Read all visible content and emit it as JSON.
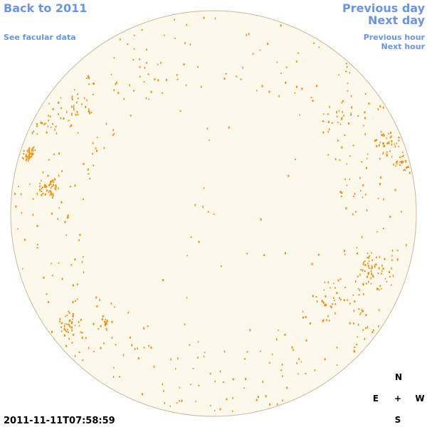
{
  "links": {
    "back": "Back to 2011",
    "facular": "See facular data",
    "prev_day": "Previous day",
    "next_day": "Next day",
    "prev_hour": "Previous hour",
    "next_hour": "Next hour"
  },
  "timestamp": "2011-11-11T07:58:59",
  "compass": {
    "n": "N",
    "e": "E",
    "center": "+",
    "w": "W",
    "s": "S"
  }
}
